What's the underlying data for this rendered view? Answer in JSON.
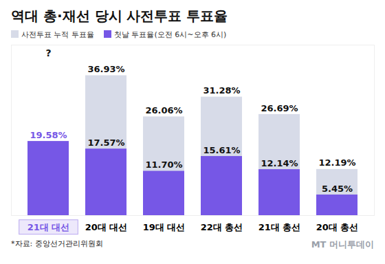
{
  "chart_data": {
    "type": "bar",
    "title": "역대 총·재선 당시 사전투표 투표율",
    "categories": [
      "21대 대선",
      "20대 대선",
      "19대 대선",
      "22대 총선",
      "21대 총선",
      "20대 총선"
    ],
    "series": [
      {
        "name": "사전투표 누적 투표율",
        "color": "#d7dbe8",
        "values": [
          null,
          36.93,
          26.06,
          31.28,
          26.69,
          12.19
        ],
        "value_labels": [
          "?",
          "36.93%",
          "26.06%",
          "31.28%",
          "26.69%",
          "12.19%"
        ]
      },
      {
        "name": "첫날 투표율(오전 6시~오후 6시)",
        "color": "#7657e6",
        "values": [
          19.58,
          17.57,
          11.7,
          15.61,
          12.14,
          5.45
        ],
        "value_labels": [
          "19.58%",
          "17.57%",
          "11.70%",
          "15.61%",
          "12.14%",
          "5.45%"
        ]
      }
    ],
    "stacked": false,
    "data_labels": true,
    "ylim": [
      0,
      45
    ],
    "yticks": [],
    "tick_labels": "x",
    "grid": false,
    "source": "*자료: 중앙선거관리위원회",
    "credit": "MT 머니투데이"
  }
}
